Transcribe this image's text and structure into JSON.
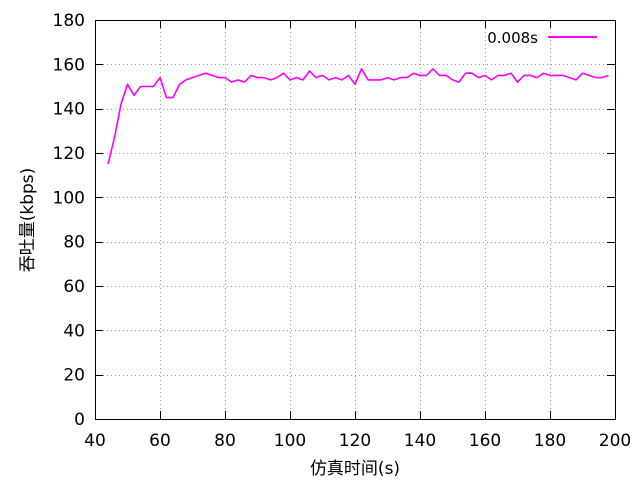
{
  "chart_data": {
    "type": "line",
    "title": "",
    "xlabel": "仿真时间(s)",
    "ylabel": "吞吐量(kbps)",
    "xlim": [
      40,
      200
    ],
    "ylim": [
      0,
      180
    ],
    "xticks": [
      40,
      60,
      80,
      100,
      120,
      140,
      160,
      180,
      200
    ],
    "yticks": [
      0,
      20,
      40,
      60,
      80,
      100,
      120,
      140,
      160,
      180
    ],
    "grid": true,
    "legend_position": "top-right",
    "series": [
      {
        "name": "0.008s",
        "color": "#ff00ff",
        "x": [
          44,
          46,
          48,
          50,
          52,
          54,
          56,
          58,
          60,
          62,
          64,
          66,
          68,
          70,
          72,
          74,
          76,
          78,
          80,
          82,
          84,
          86,
          88,
          90,
          92,
          94,
          96,
          98,
          100,
          102,
          104,
          106,
          108,
          110,
          112,
          114,
          116,
          118,
          120,
          122,
          124,
          126,
          128,
          130,
          132,
          134,
          136,
          138,
          140,
          142,
          144,
          146,
          148,
          150,
          152,
          154,
          156,
          158,
          160,
          162,
          164,
          166,
          168,
          170,
          172,
          174,
          176,
          178,
          180,
          182,
          184,
          186,
          188,
          190,
          192,
          194,
          196,
          198
        ],
        "y": [
          115,
          127,
          142,
          151,
          146,
          150,
          150,
          150,
          154,
          145,
          145,
          151,
          153,
          154,
          155,
          156,
          155,
          154,
          154,
          152,
          153,
          152,
          155,
          154,
          154,
          153,
          154,
          156,
          153,
          154,
          153,
          157,
          154,
          155,
          153,
          154,
          153,
          155,
          151,
          158,
          153,
          153,
          153,
          154,
          153,
          154,
          154,
          156,
          155,
          155,
          158,
          155,
          155,
          153,
          152,
          156,
          156,
          154,
          155,
          153,
          155,
          155,
          156,
          152,
          155,
          155,
          154,
          156,
          155,
          155,
          155,
          154,
          153,
          156,
          155,
          154,
          154,
          155
        ]
      }
    ]
  }
}
